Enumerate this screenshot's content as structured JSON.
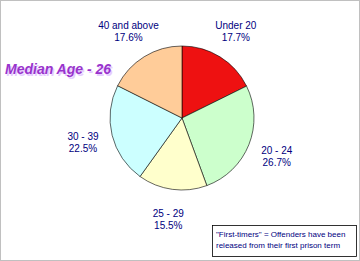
{
  "chart_data": {
    "type": "pie",
    "categories": [
      "Under 20",
      "20 - 24",
      "25 - 29",
      "30 - 39",
      "40 and above"
    ],
    "values": [
      17.7,
      26.7,
      15.5,
      22.5,
      17.6
    ],
    "value_labels": [
      "17.7%",
      "26.7%",
      "15.5%",
      "22.5%",
      "17.6%"
    ],
    "colors": [
      "#ee1111",
      "#ccffcc",
      "#ffffcc",
      "#ccffff",
      "#ffcc99"
    ],
    "data_labels": true,
    "annotations": [
      "Median Age - 26",
      "\"First-timers\" = Offenders have been released from their first prison term"
    ]
  }
}
